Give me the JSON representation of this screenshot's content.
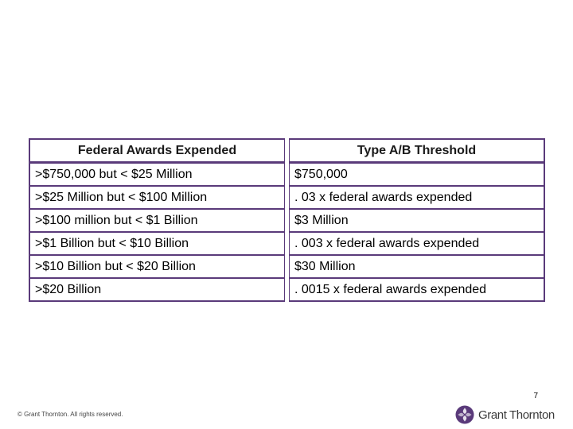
{
  "table": {
    "headers": [
      "Federal Awards Expended",
      "Type A/B Threshold"
    ],
    "rows": [
      [
        ">$750,000 but < $25 Million",
        "$750,000"
      ],
      [
        ">$25 Million but < $100 Million",
        ". 03 x federal awards expended"
      ],
      [
        ">$100 million but < $1 Billion",
        "$3 Million"
      ],
      [
        ">$1 Billion but < $10 Billion",
        ". 003 x federal awards expended"
      ],
      [
        ">$10 Billion but < $20 Billion",
        "$30 Million"
      ],
      [
        ">$20 Billion",
        ". 0015 x federal awards expended"
      ]
    ]
  },
  "footer": {
    "page_number": "7",
    "copyright": "© Grant Thornton. All rights reserved.",
    "logo_text": "Grant Thornton",
    "logo_icon": "grant-thornton-logo-mark-icon",
    "brand_color": "#5a3a7a"
  }
}
